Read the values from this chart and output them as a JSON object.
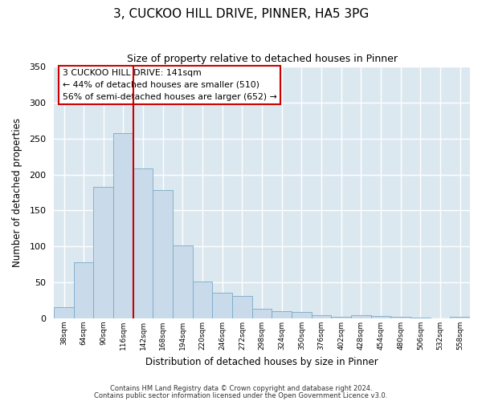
{
  "title": "3, CUCKOO HILL DRIVE, PINNER, HA5 3PG",
  "subtitle": "Size of property relative to detached houses in Pinner",
  "xlabel": "Distribution of detached houses by size in Pinner",
  "ylabel": "Number of detached properties",
  "bar_color": "#c9daea",
  "bar_edge_color": "#7aaac8",
  "background_color": "#dce8f0",
  "grid_color": "#ffffff",
  "bin_labels": [
    "38sqm",
    "64sqm",
    "90sqm",
    "116sqm",
    "142sqm",
    "168sqm",
    "194sqm",
    "220sqm",
    "246sqm",
    "272sqm",
    "298sqm",
    "324sqm",
    "350sqm",
    "376sqm",
    "402sqm",
    "428sqm",
    "454sqm",
    "480sqm",
    "506sqm",
    "532sqm",
    "558sqm"
  ],
  "bin_values": [
    16,
    78,
    183,
    258,
    209,
    178,
    101,
    51,
    36,
    31,
    13,
    10,
    9,
    4,
    2,
    4,
    3,
    2,
    1,
    0,
    2
  ],
  "vline_x_index": 4,
  "vline_color": "#cc0000",
  "ylim": [
    0,
    350
  ],
  "yticks": [
    0,
    50,
    100,
    150,
    200,
    250,
    300,
    350
  ],
  "annotation_line0": "3 CUCKOO HILL DRIVE: 141sqm",
  "annotation_line1": "← 44% of detached houses are smaller (510)",
  "annotation_line2": "56% of semi-detached houses are larger (652) →",
  "annotation_box_color": "#ffffff",
  "annotation_box_edge": "#cc0000",
  "footnote1": "Contains HM Land Registry data © Crown copyright and database right 2024.",
  "footnote2": "Contains public sector information licensed under the Open Government Licence v3.0."
}
